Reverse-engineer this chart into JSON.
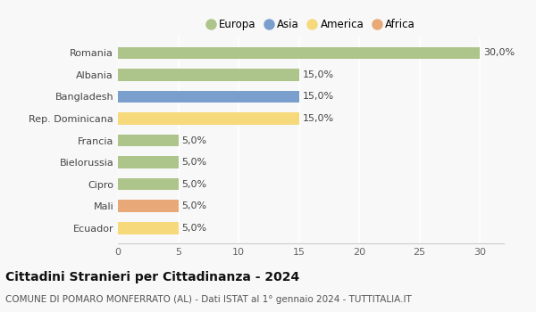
{
  "countries": [
    "Romania",
    "Albania",
    "Bangladesh",
    "Rep. Dominicana",
    "Francia",
    "Bielorussia",
    "Cipro",
    "Mali",
    "Ecuador"
  ],
  "values": [
    30.0,
    15.0,
    15.0,
    15.0,
    5.0,
    5.0,
    5.0,
    5.0,
    5.0
  ],
  "continents": [
    "Europa",
    "Europa",
    "Asia",
    "America",
    "Europa",
    "Europa",
    "Europa",
    "Africa",
    "America"
  ],
  "colors": {
    "Europa": "#adc48a",
    "Asia": "#7b9fcc",
    "America": "#f5d97a",
    "Africa": "#e8a878"
  },
  "legend_order": [
    "Europa",
    "Asia",
    "America",
    "Africa"
  ],
  "title": "Cittadini Stranieri per Cittadinanza - 2024",
  "subtitle": "COMUNE DI POMARO MONFERRATO (AL) - Dati ISTAT al 1° gennaio 2024 - TUTTITALIA.IT",
  "xlim": [
    0,
    32
  ],
  "xticks": [
    0,
    5,
    10,
    15,
    20,
    25,
    30
  ],
  "background_color": "#f8f8f8",
  "plot_bg_color": "#f8f8f8",
  "grid_color": "#ffffff",
  "bar_height": 0.55,
  "title_fontsize": 10,
  "subtitle_fontsize": 7.5,
  "label_fontsize": 8,
  "ytick_fontsize": 8,
  "xtick_fontsize": 8,
  "legend_fontsize": 8.5
}
